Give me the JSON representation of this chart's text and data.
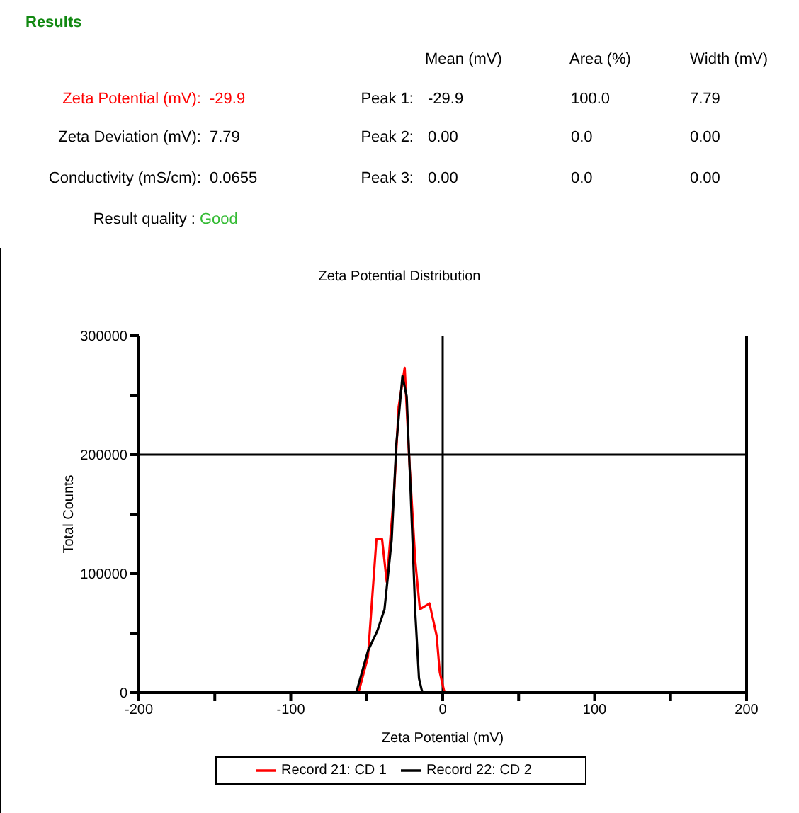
{
  "chart_data": {
    "type": "line",
    "title": "Zeta Potential Distribution",
    "xlabel": "Zeta Potential (mV)",
    "ylabel": "Total Counts",
    "annotations": [
      "Results",
      "Mean (mV)",
      "Area (%)",
      "Width (mV)",
      "Zeta Potential (mV):",
      "-29.9",
      "Peak 1:",
      "-29.9",
      "100.0",
      "7.79",
      "Zeta Deviation (mV):",
      "7.79",
      "Peak 2:",
      "0.00",
      "0.0",
      "0.00",
      "Conductivity (mS/cm):",
      "0.0655",
      "Peak 3:",
      "0.00",
      "0.0",
      "0.00",
      "Result quality :",
      "Good"
    ],
    "series": [
      {
        "name": "Record 21: CD 1",
        "color": "#ff0000",
        "x": [
          -148.6,
          -55.4,
          -49.2,
          -43.6,
          -39.9,
          -36.8,
          -32,
          -29,
          -25,
          -21.8,
          -18,
          -15,
          -8.7,
          -4,
          -1.9,
          1.2,
          147
        ],
        "values": [
          0,
          0,
          30000,
          129000,
          129000,
          93000,
          168000,
          240000,
          273000,
          191000,
          110000,
          70000,
          75000,
          48000,
          17000,
          0,
          0
        ]
      },
      {
        "name": "Record 22: CD 2",
        "color": "#000000",
        "x": [
          -56.9,
          -49.2,
          -43,
          -38.3,
          -33.6,
          -30.5,
          -26.5,
          -23.7,
          -21.2,
          -18,
          -15.6,
          -13.4
        ],
        "values": [
          0,
          35000,
          52000,
          70000,
          128000,
          209000,
          266000,
          249000,
          172000,
          66000,
          12000,
          0
        ]
      }
    ],
    "xlim": [
      -200,
      200
    ],
    "xticks": [
      -200,
      {
        "value": -150,
        "label": null
      },
      -100,
      {
        "value": -50,
        "label": null
      },
      0,
      {
        "value": 50,
        "label": null
      },
      100,
      {
        "value": 150,
        "label": null
      },
      200
    ],
    "ylim": [
      0,
      300000
    ],
    "yticks": [
      0,
      {
        "value": 50000,
        "label": null
      },
      100000,
      {
        "value": 150000,
        "label": null
      },
      200000,
      {
        "value": 250000,
        "label": null
      },
      300000
    ],
    "ref_lines": [
      {
        "axis": "y",
        "value": 200000,
        "color": "#000000"
      },
      {
        "axis": "x",
        "value": 0,
        "color": "#000000"
      }
    ],
    "grid": false,
    "legend": "bottom",
    "marker": "none",
    "line_style": "solid"
  }
}
